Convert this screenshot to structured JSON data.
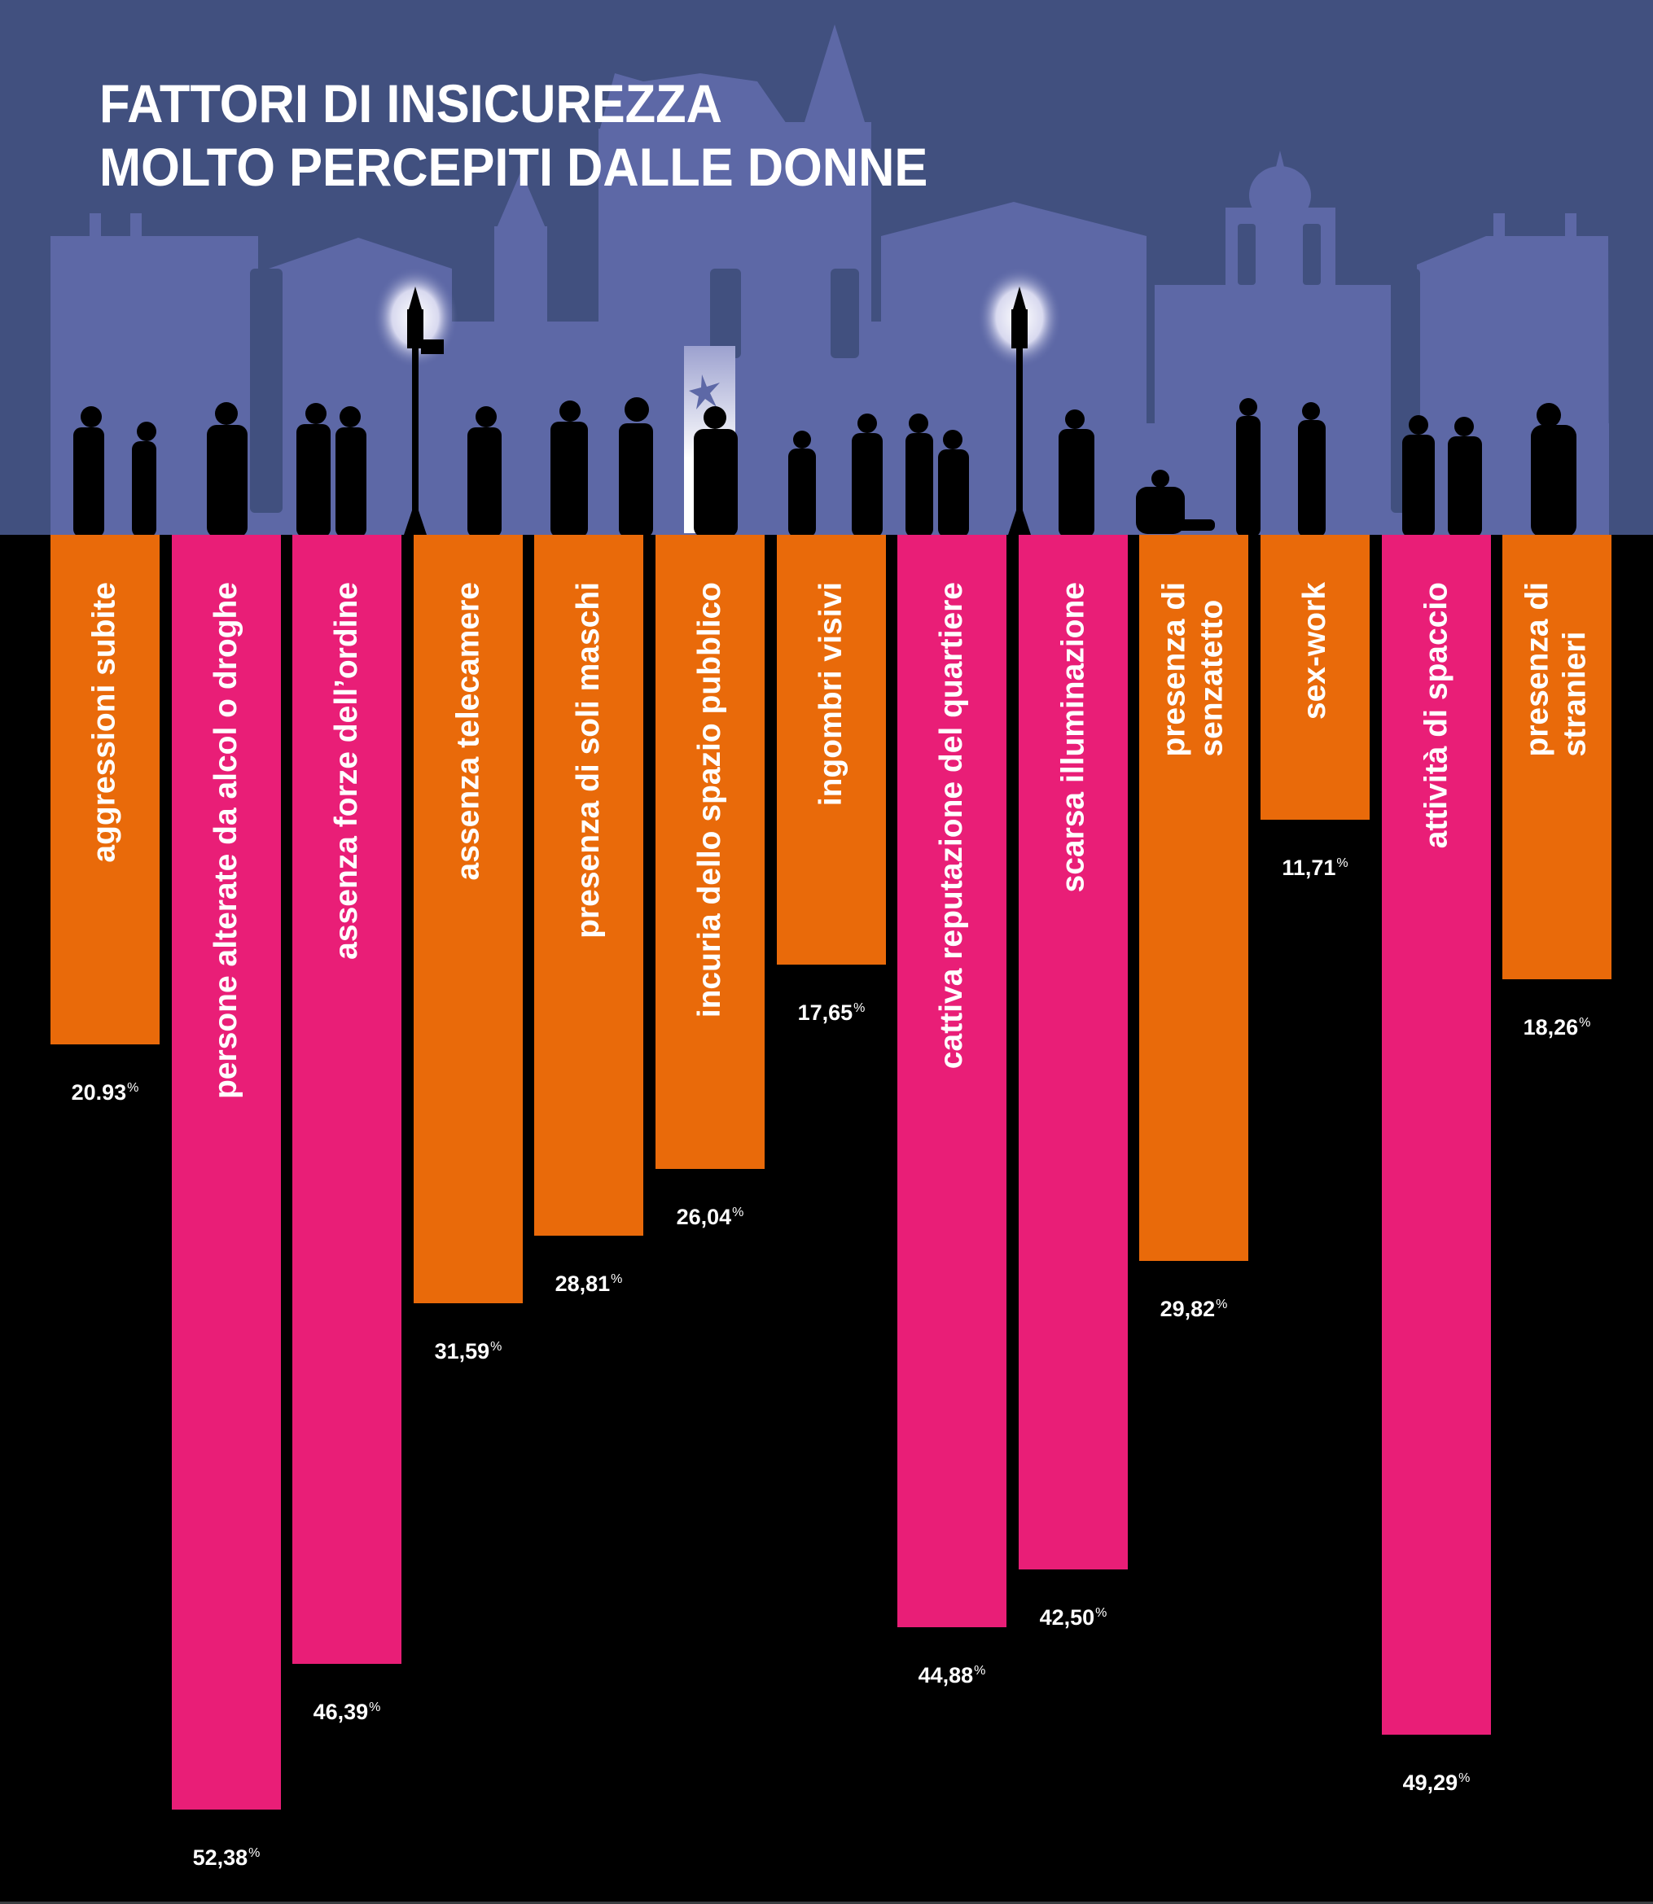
{
  "title": {
    "line1": "FATTORI DI INSICUREZZA",
    "line2": "MOLTO PERCEPITI DALLE DONNE"
  },
  "colors": {
    "sky": "#41507f",
    "skyline": "#5d68a6",
    "orange": "#e96a0a",
    "pink": "#e91e77",
    "background": "#000000",
    "text": "#ffffff"
  },
  "bars": [
    {
      "label": "aggressioni subite",
      "value_text": "20.93",
      "unit": "%",
      "value": 20.93,
      "color": "orange"
    },
    {
      "label": "persone alterate da alcol o droghe",
      "value_text": "52,38",
      "unit": "%",
      "value": 52.38,
      "color": "pink"
    },
    {
      "label": "assenza forze dell’ordine",
      "value_text": "46,39",
      "unit": "%",
      "value": 46.39,
      "color": "pink"
    },
    {
      "label": "assenza telecamere",
      "value_text": "31,59",
      "unit": "%",
      "value": 31.59,
      "color": "orange"
    },
    {
      "label": "presenza di soli maschi",
      "value_text": "28,81",
      "unit": "%",
      "value": 28.81,
      "color": "orange"
    },
    {
      "label": "incuria dello spazio pubblico",
      "value_text": "26,04",
      "unit": "%",
      "value": 26.04,
      "color": "orange"
    },
    {
      "label": "ingombri visivi",
      "value_text": "17,65",
      "unit": "%",
      "value": 17.65,
      "color": "orange"
    },
    {
      "label": "cattiva reputazione del quartiere",
      "value_text": "44,88",
      "unit": "%",
      "value": 44.88,
      "color": "pink"
    },
    {
      "label": "scarsa illuminazione",
      "value_text": "42,50",
      "unit": "%",
      "value": 42.5,
      "color": "pink"
    },
    {
      "label": "presenza di senzatetto",
      "label_lines": [
        "presenza di",
        "senzatetto"
      ],
      "value_text": "29,82",
      "unit": "%",
      "value": 29.82,
      "color": "orange"
    },
    {
      "label": "sex-work",
      "value_text": "11,71",
      "unit": "%",
      "value": 11.71,
      "color": "orange"
    },
    {
      "label": "attività di spaccio",
      "value_text": "49,29",
      "unit": "%",
      "value": 49.29,
      "color": "pink"
    },
    {
      "label": "presenza di stranieri",
      "label_lines": [
        "presenza di",
        "stranieri"
      ],
      "value_text": "18,26",
      "unit": "%",
      "value": 18.26,
      "color": "orange"
    }
  ],
  "chart_data": {
    "type": "bar",
    "orientation": "vertical-downward",
    "title": "FATTORI DI INSICUREZZA MOLTO PERCEPITI DALLE DONNE",
    "xlabel": "",
    "ylabel": "",
    "unit": "%",
    "categories": [
      "aggressioni subite",
      "persone alterate da alcol o droghe",
      "assenza forze dell’ordine",
      "assenza telecamere",
      "presenza di soli maschi",
      "incuria dello spazio pubblico",
      "ingombri visivi",
      "cattiva reputazione del quartiere",
      "scarsa illuminazione",
      "presenza di senzatetto",
      "sex-work",
      "attività di spaccio",
      "presenza di stranieri"
    ],
    "values": [
      20.93,
      52.38,
      46.39,
      31.59,
      28.81,
      26.04,
      17.65,
      44.88,
      42.5,
      29.82,
      11.71,
      49.29,
      18.26
    ],
    "bar_colors": [
      "#e96a0a",
      "#e91e77",
      "#e91e77",
      "#e96a0a",
      "#e96a0a",
      "#e96a0a",
      "#e96a0a",
      "#e91e77",
      "#e91e77",
      "#e96a0a",
      "#e96a0a",
      "#e91e77",
      "#e96a0a"
    ],
    "grid": false,
    "legend": null,
    "ylim": [
      0,
      55
    ]
  }
}
